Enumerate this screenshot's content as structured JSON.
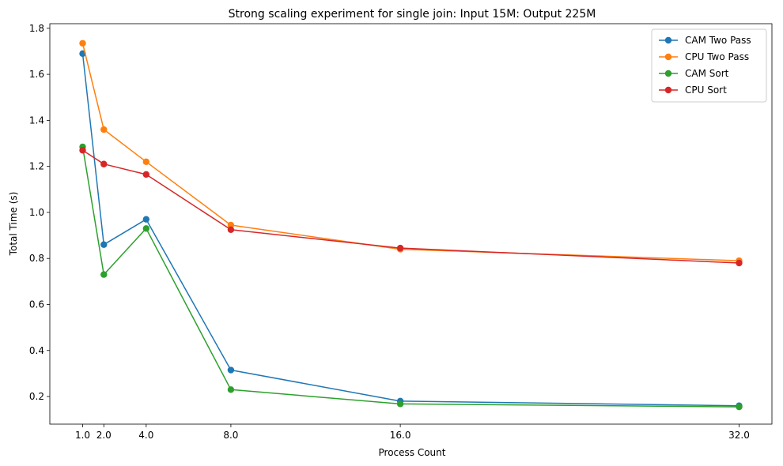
{
  "chart_data": {
    "type": "line",
    "title": "Strong scaling experiment for single join: Input 15M: Output 225M",
    "xlabel": "Process Count",
    "ylabel": "Total Time (s)",
    "x": [
      1,
      2,
      4,
      8,
      16,
      32
    ],
    "xticks": [
      "1.0",
      "2.0",
      "4.0",
      "8.0",
      "16.0",
      "32.0"
    ],
    "yticks": [
      "0.2",
      "0.4",
      "0.6",
      "0.8",
      "1.0",
      "1.2",
      "1.4",
      "1.6",
      "1.8"
    ],
    "xlim": [
      -0.55,
      33.55
    ],
    "ylim": [
      0.08,
      1.82
    ],
    "grid": false,
    "legend_position": "top-right",
    "series": [
      {
        "name": "CAM Two Pass",
        "color": "#1f77b4",
        "values": [
          1.69,
          0.86,
          0.97,
          0.315,
          0.18,
          0.16
        ]
      },
      {
        "name": "CPU Two Pass",
        "color": "#ff7f0e",
        "values": [
          1.735,
          1.36,
          1.22,
          0.945,
          0.84,
          0.79
        ]
      },
      {
        "name": "CAM Sort",
        "color": "#2ca02c",
        "values": [
          1.285,
          0.73,
          0.93,
          0.23,
          0.168,
          0.155
        ]
      },
      {
        "name": "CPU Sort",
        "color": "#d62728",
        "values": [
          1.27,
          1.21,
          1.165,
          0.925,
          0.845,
          0.78
        ]
      }
    ]
  }
}
